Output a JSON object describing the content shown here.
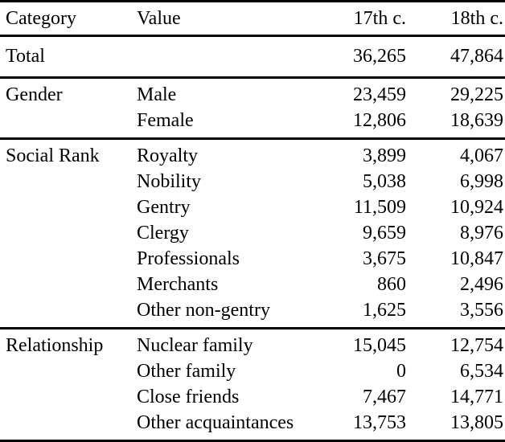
{
  "table": {
    "columns": [
      "Category",
      "Value",
      "17th c.",
      "18th c."
    ],
    "sections": [
      {
        "category": "Total",
        "rows": [
          {
            "value": "",
            "c17": "36,265",
            "c18": "47,864"
          }
        ]
      },
      {
        "category": "Gender",
        "rows": [
          {
            "value": "Male",
            "c17": "23,459",
            "c18": "29,225"
          },
          {
            "value": "Female",
            "c17": "12,806",
            "c18": "18,639"
          }
        ]
      },
      {
        "category": "Social Rank",
        "rows": [
          {
            "value": "Royalty",
            "c17": "3,899",
            "c18": "4,067"
          },
          {
            "value": "Nobility",
            "c17": "5,038",
            "c18": "6,998"
          },
          {
            "value": "Gentry",
            "c17": "11,509",
            "c18": "10,924"
          },
          {
            "value": "Clergy",
            "c17": "9,659",
            "c18": "8,976"
          },
          {
            "value": "Professionals",
            "c17": "3,675",
            "c18": "10,847"
          },
          {
            "value": "Merchants",
            "c17": "860",
            "c18": "2,496"
          },
          {
            "value": "Other non-gentry",
            "c17": "1,625",
            "c18": "3,556"
          }
        ]
      },
      {
        "category": "Relationship",
        "rows": [
          {
            "value": "Nuclear family",
            "c17": "15,045",
            "c18": "12,754"
          },
          {
            "value": "Other family",
            "c17": "0",
            "c18": "6,534"
          },
          {
            "value": "Close friends",
            "c17": "7,467",
            "c18": "14,771"
          },
          {
            "value": "Other acquaintances",
            "c17": "13,753",
            "c18": "13,805"
          }
        ]
      }
    ]
  }
}
